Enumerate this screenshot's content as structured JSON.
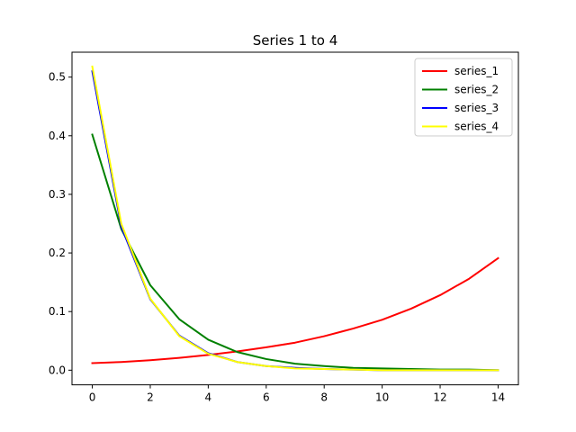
{
  "chart_data": {
    "type": "line",
    "title": "Series 1 to 4",
    "xlabel": "",
    "ylabel": "",
    "xlim": [
      -0.7,
      14.7
    ],
    "ylim": [
      -0.025,
      0.5425
    ],
    "xticks": [
      0,
      2,
      4,
      6,
      8,
      10,
      12,
      14
    ],
    "xtick_labels": [
      "0",
      "2",
      "4",
      "6",
      "8",
      "10",
      "12",
      "14"
    ],
    "yticks": [
      0.0,
      0.1,
      0.2,
      0.3,
      0.4,
      0.5
    ],
    "ytick_labels": [
      "0.0",
      "0.1",
      "0.2",
      "0.3",
      "0.4",
      "0.5"
    ],
    "grid": false,
    "legend_position": "top-right",
    "x": [
      0,
      1,
      2,
      3,
      4,
      5,
      6,
      7,
      8,
      9,
      10,
      11,
      12,
      13,
      14
    ],
    "series": [
      {
        "name": "series_1",
        "color": "#ff0000",
        "values": [
          0.012,
          0.014,
          0.017,
          0.021,
          0.026,
          0.032,
          0.039,
          0.047,
          0.058,
          0.071,
          0.086,
          0.105,
          0.128,
          0.156,
          0.191
        ]
      },
      {
        "name": "series_2",
        "color": "#008000",
        "values": [
          0.402,
          0.241,
          0.145,
          0.087,
          0.052,
          0.031,
          0.019,
          0.011,
          0.007,
          0.004,
          0.003,
          0.002,
          0.001,
          0.001,
          0.0
        ]
      },
      {
        "name": "series_3",
        "color": "#0000ff",
        "values": [
          0.51,
          0.245,
          0.121,
          0.059,
          0.029,
          0.014,
          0.007,
          0.004,
          0.002,
          0.001,
          0.0,
          0.0,
          0.0,
          0.0,
          0.0
        ]
      },
      {
        "name": "series_4",
        "color": "#ffff00",
        "values": [
          0.518,
          0.25,
          0.122,
          0.058,
          0.028,
          0.014,
          0.007,
          0.003,
          0.002,
          0.001,
          0.0,
          0.0,
          0.0,
          0.0,
          0.0
        ]
      }
    ]
  }
}
